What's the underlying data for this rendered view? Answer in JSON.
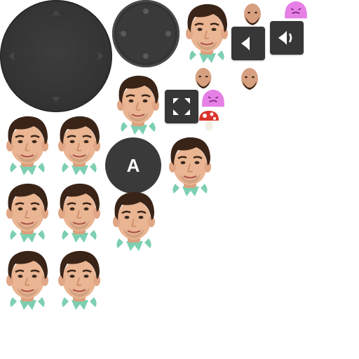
{
  "sheet": {
    "joystick": {
      "base_icon": "dpad-arrows",
      "knob_icon": "knob-dots"
    },
    "buttons": {
      "action_label": "A",
      "fullscreen_icon": "fullscreen-icon",
      "sound_off_icon": "speaker-muted-icon",
      "sound_on_icon": "speaker-on-icon"
    },
    "sprites": {
      "player_head": "player-head",
      "enemy_head": "bald-enemy-head",
      "slime": "pink-slime",
      "mushroom": "red-mushroom"
    },
    "colors": {
      "ui_dark": "#373737",
      "skin": "#e8b08c",
      "hair": "#3a2418",
      "collar": "#7ccfb0",
      "slime": "#e680e6",
      "mushroom_red": "#d9342b"
    }
  }
}
